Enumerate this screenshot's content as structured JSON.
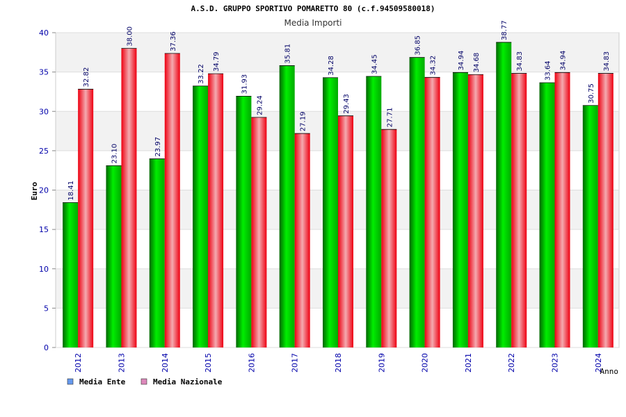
{
  "chart_data": {
    "type": "bar",
    "title": "A.S.D. GRUPPO SPORTIVO POMARETTO 80 (c.f.94509580018)",
    "subtitle": "Media Importi",
    "xlabel": "Anno",
    "ylabel": "Euro",
    "ylim": [
      0,
      40
    ],
    "yticks": [
      "0",
      "5",
      "10",
      "15",
      "20",
      "25",
      "30",
      "35",
      "40"
    ],
    "grid": true,
    "legend_position": "bottom-left",
    "categories": [
      "2012",
      "2013",
      "2014",
      "2015",
      "2016",
      "2017",
      "2018",
      "2019",
      "2020",
      "2021",
      "2022",
      "2023",
      "2024"
    ],
    "series": [
      {
        "name": "Media Ente",
        "color": "#00cc00",
        "legend_color": "#6699ee",
        "values": [
          18.41,
          23.1,
          23.97,
          33.22,
          31.93,
          35.81,
          34.28,
          34.45,
          36.85,
          34.94,
          38.77,
          33.64,
          30.75
        ],
        "labels": [
          "18.41",
          "23.10",
          "23.97",
          "33.22",
          "31.93",
          "35.81",
          "34.28",
          "34.45",
          "36.85",
          "34.94",
          "38.77",
          "33.64",
          "30.75"
        ]
      },
      {
        "name": "Media Nazionale",
        "color": "#ee1122",
        "legend_color": "#dd88bb",
        "values": [
          32.82,
          38.0,
          37.36,
          34.79,
          29.24,
          27.19,
          29.43,
          27.71,
          34.32,
          34.68,
          34.83,
          34.94,
          34.83
        ],
        "labels": [
          "32.82",
          "38.00",
          "37.36",
          "34.79",
          "29.24",
          "27.19",
          "29.43",
          "27.71",
          "34.32",
          "34.68",
          "34.83",
          "34.94",
          "34.83"
        ]
      }
    ]
  }
}
